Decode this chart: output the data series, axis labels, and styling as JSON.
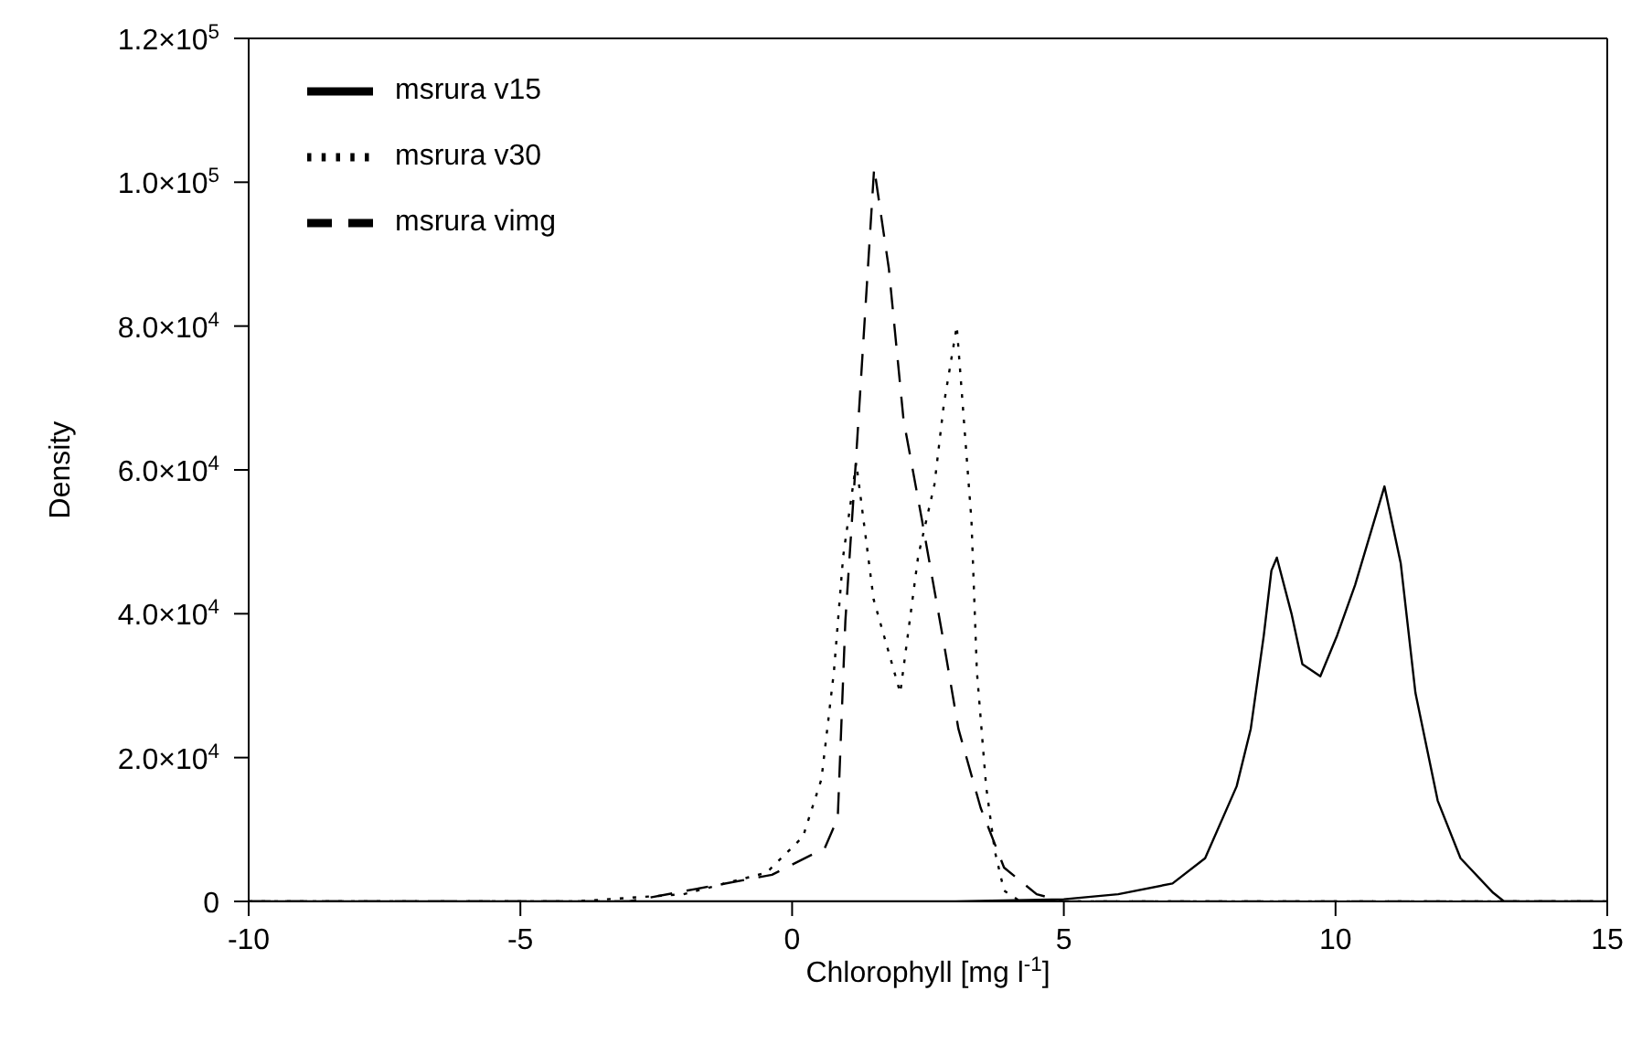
{
  "chart_data": {
    "type": "line",
    "xlabel": "Chlorophyll [mg l$^{-1}$]",
    "ylabel": "Density",
    "xlim": [
      -10,
      15
    ],
    "xticks": [
      -10,
      -5,
      0,
      5,
      10,
      15
    ],
    "ylim": [
      0,
      120000
    ],
    "yticks": [
      {
        "value": 0,
        "label": "0"
      },
      {
        "value": 20000,
        "label": "2.0×10$^{4}$"
      },
      {
        "value": 40000,
        "label": "4.0×10$^{4}$"
      },
      {
        "value": 60000,
        "label": "6.0×10$^{4}$"
      },
      {
        "value": 80000,
        "label": "8.0×10$^{4}$"
      },
      {
        "value": 100000,
        "label": "1.0×10$^{5}$"
      },
      {
        "value": 120000,
        "label": "1.2×10$^{5}$"
      }
    ],
    "legend": "top left",
    "marker": "none",
    "series": [
      {
        "name": "msrura v15",
        "color": "#000000",
        "line_style": "solid",
        "x": [
          -10,
          0,
          3,
          5,
          6,
          7,
          7.6,
          8.18,
          8.44,
          8.68,
          8.82,
          8.92,
          9.19,
          9.39,
          9.72,
          10.03,
          10.36,
          10.9,
          11.2,
          11.47,
          11.88,
          12.3,
          12.9,
          13.1,
          15
        ],
        "values": [
          0,
          0,
          0,
          300,
          1000,
          2500,
          6000,
          16000,
          24000,
          37000,
          46000,
          47800,
          40000,
          33000,
          31300,
          37000,
          44000,
          57700,
          47000,
          29000,
          14000,
          6000,
          1200,
          0,
          0
        ]
      },
      {
        "name": "msrura v30",
        "color": "#000000",
        "line_style": "dotted",
        "x": [
          -10,
          -4,
          -2,
          -0.47,
          0.2,
          0.54,
          0.77,
          0.94,
          1.18,
          1.5,
          1.99,
          2.32,
          2.62,
          2.79,
          3.03,
          3.3,
          3.4,
          3.57,
          3.73,
          3.9,
          4.2,
          15
        ],
        "values": [
          0,
          0,
          1000,
          4000,
          9000,
          17000,
          32000,
          48000,
          61000,
          42000,
          29000,
          48000,
          58000,
          69000,
          80000,
          53000,
          32000,
          16000,
          7000,
          1500,
          0,
          0
        ]
      },
      {
        "name": "msrura vimg",
        "color": "#000000",
        "line_style": "dashed",
        "x": [
          -10,
          -3,
          -0.37,
          0.6,
          0.84,
          0.98,
          1.18,
          1.51,
          1.78,
          2.05,
          2.39,
          2.79,
          3.06,
          3.47,
          3.9,
          4.5,
          5,
          15
        ],
        "values": [
          0,
          0,
          3700,
          7400,
          11600,
          39000,
          62000,
          102000,
          88000,
          67000,
          53000,
          36000,
          24000,
          13000,
          4700,
          1000,
          0,
          0
        ]
      }
    ]
  }
}
